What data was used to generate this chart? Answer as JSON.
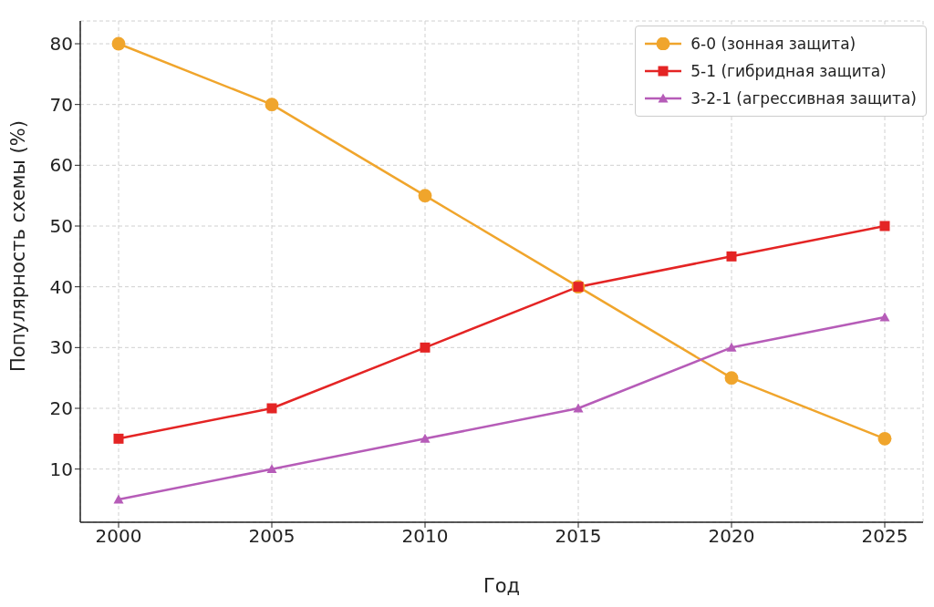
{
  "chart_data": {
    "type": "line",
    "xlabel": "Год",
    "ylabel": "Популярность схемы (%)",
    "x": [
      2000,
      2005,
      2010,
      2015,
      2020,
      2025
    ],
    "series": [
      {
        "name": "6-0 (зонная защита)",
        "color": "#f0a52c",
        "marker": "circle",
        "values": [
          80,
          70,
          55,
          40,
          25,
          15
        ]
      },
      {
        "name": "5-1 (гибридная защита)",
        "color": "#e42424",
        "marker": "square",
        "values": [
          15,
          20,
          30,
          40,
          45,
          50
        ]
      },
      {
        "name": "3-2-1 (агрессивная защита)",
        "color": "#b65cb8",
        "marker": "triangle",
        "values": [
          5,
          10,
          15,
          20,
          30,
          35
        ]
      }
    ],
    "xlim": [
      1998.75,
      2026.25
    ],
    "xticks": [
      2000,
      2005,
      2010,
      2015,
      2020,
      2025
    ],
    "ylim": [
      1.25,
      83.75
    ],
    "yticks": [
      10,
      20,
      30,
      40,
      50,
      60,
      70,
      80
    ],
    "grid": true,
    "legend": "top right",
    "line_style": "solid"
  }
}
